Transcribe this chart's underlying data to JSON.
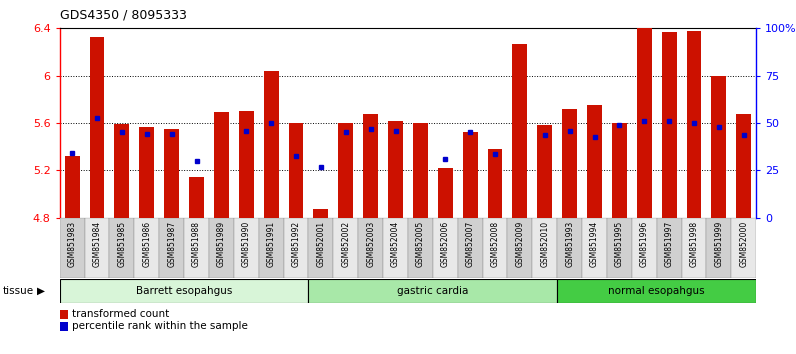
{
  "title": "GDS4350 / 8095333",
  "samples": [
    "GSM851983",
    "GSM851984",
    "GSM851985",
    "GSM851986",
    "GSM851987",
    "GSM851988",
    "GSM851989",
    "GSM851990",
    "GSM851991",
    "GSM851992",
    "GSM852001",
    "GSM852002",
    "GSM852003",
    "GSM852004",
    "GSM852005",
    "GSM852006",
    "GSM852007",
    "GSM852008",
    "GSM852009",
    "GSM852010",
    "GSM851993",
    "GSM851994",
    "GSM851995",
    "GSM851996",
    "GSM851997",
    "GSM851998",
    "GSM851999",
    "GSM852000"
  ],
  "bar_values": [
    5.32,
    6.33,
    5.59,
    5.57,
    5.55,
    5.14,
    5.69,
    5.7,
    6.04,
    5.6,
    4.87,
    5.6,
    5.68,
    5.62,
    5.6,
    5.22,
    5.52,
    5.38,
    6.27,
    5.58,
    5.72,
    5.75,
    5.6,
    6.4,
    6.37,
    6.38,
    6.0,
    5.68
  ],
  "blue_dot_values": [
    5.35,
    5.64,
    5.52,
    5.51,
    5.51,
    5.28,
    null,
    5.53,
    5.6,
    5.32,
    5.23,
    5.52,
    5.55,
    5.53,
    null,
    5.3,
    5.52,
    5.34,
    null,
    5.5,
    5.53,
    5.48,
    5.58,
    5.62,
    5.62,
    5.6,
    5.57,
    5.5
  ],
  "groups": [
    {
      "label": "Barrett esopahgus",
      "start": 0,
      "end": 9,
      "color": "#d8f5d8"
    },
    {
      "label": "gastric cardia",
      "start": 10,
      "end": 19,
      "color": "#a8e8a8"
    },
    {
      "label": "normal esopahgus",
      "start": 20,
      "end": 27,
      "color": "#44cc44"
    }
  ],
  "ylim": [
    4.8,
    6.4
  ],
  "y2lim": [
    0,
    100
  ],
  "yticks": [
    4.8,
    5.2,
    5.6,
    6.0,
    6.4
  ],
  "y2ticks": [
    0,
    25,
    50,
    75,
    100
  ],
  "y2ticklabels": [
    "0",
    "25",
    "50",
    "75",
    "100%"
  ],
  "bar_color": "#cc1100",
  "dot_color": "#0000cc",
  "bar_width": 0.6,
  "bg_color": "#ffffff",
  "tick_bg_even": "#d0d0d0",
  "tick_bg_odd": "#e8e8e8",
  "tissue_label": "tissue",
  "legend_items": [
    {
      "color": "#cc1100",
      "label": "transformed count"
    },
    {
      "color": "#0000cc",
      "label": "percentile rank within the sample"
    }
  ]
}
